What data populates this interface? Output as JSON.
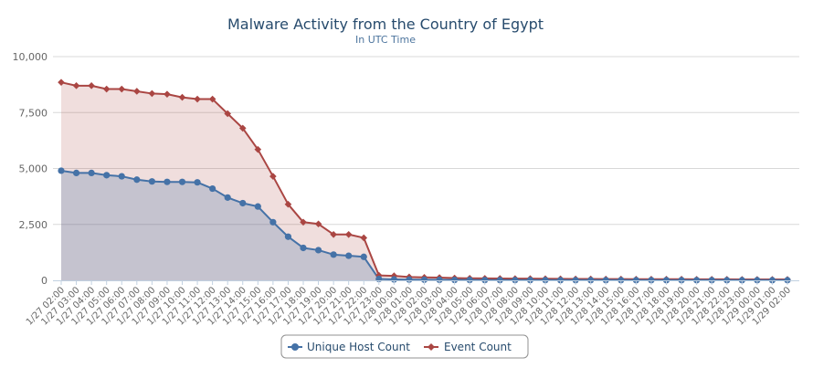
{
  "chart_data": {
    "type": "area",
    "title": "Malware Activity from the Country of Egypt",
    "subtitle": "In UTC Time",
    "xlabel": "",
    "ylabel": "",
    "ylim": [
      0,
      10000
    ],
    "yticks": [
      "0",
      "2,500",
      "5,000",
      "7,500",
      "10,000"
    ],
    "ytick_values": [
      0,
      2500,
      5000,
      7500,
      10000
    ],
    "grid": true,
    "legend_position": "bottom-center",
    "x": [
      "1/27 02:00",
      "1/27 03:00",
      "1/27 04:00",
      "1/27 05:00",
      "1/27 06:00",
      "1/27 07:00",
      "1/27 08:00",
      "1/27 09:00",
      "1/27 10:00",
      "1/27 11:00",
      "1/27 12:00",
      "1/27 13:00",
      "1/27 14:00",
      "1/27 15:00",
      "1/27 16:00",
      "1/27 17:00",
      "1/27 18:00",
      "1/27 19:00",
      "1/27 20:00",
      "1/27 21:00",
      "1/27 22:00",
      "1/27 23:00",
      "1/28 00:00",
      "1/28 01:00",
      "1/28 02:00",
      "1/28 03:00",
      "1/28 04:00",
      "1/28 05:00",
      "1/28 06:00",
      "1/28 07:00",
      "1/28 08:00",
      "1/28 09:00",
      "1/28 10:00",
      "1/28 11:00",
      "1/28 12:00",
      "1/28 13:00",
      "1/28 14:00",
      "1/28 15:00",
      "1/28 16:00",
      "1/28 17:00",
      "1/28 18:00",
      "1/28 19:00",
      "1/28 20:00",
      "1/28 21:00",
      "1/28 22:00",
      "1/28 23:00",
      "1/29 00:00",
      "1/29 01:00",
      "1/29 02:00"
    ],
    "series": [
      {
        "name": "Unique Host Count",
        "color": "#4572a7",
        "marker": "circle",
        "values": [
          4900,
          4800,
          4800,
          4700,
          4650,
          4500,
          4420,
          4400,
          4400,
          4380,
          4100,
          3700,
          3450,
          3300,
          2600,
          1950,
          1450,
          1350,
          1150,
          1100,
          1050,
          60,
          40,
          30,
          25,
          20,
          18,
          15,
          12,
          10,
          10,
          10,
          10,
          8,
          8,
          8,
          8,
          8,
          6,
          6,
          6,
          6,
          6,
          6,
          5,
          5,
          5,
          5,
          5
        ]
      },
      {
        "name": "Event Count",
        "color": "#aa4643",
        "marker": "diamond",
        "values": [
          8850,
          8700,
          8700,
          8550,
          8550,
          8450,
          8350,
          8320,
          8180,
          8100,
          8100,
          7450,
          6800,
          5850,
          4650,
          3400,
          2600,
          2520,
          2050,
          2050,
          1900,
          220,
          200,
          150,
          130,
          120,
          100,
          90,
          85,
          80,
          75,
          75,
          70,
          65,
          60,
          60,
          55,
          55,
          50,
          50,
          50,
          50,
          45,
          45,
          45,
          40,
          40,
          40,
          40
        ]
      }
    ]
  },
  "colors": {
    "grid": "#d8d8d8",
    "axis": "#c0d0e0",
    "host": "#4572a7",
    "event": "#aa4643"
  }
}
